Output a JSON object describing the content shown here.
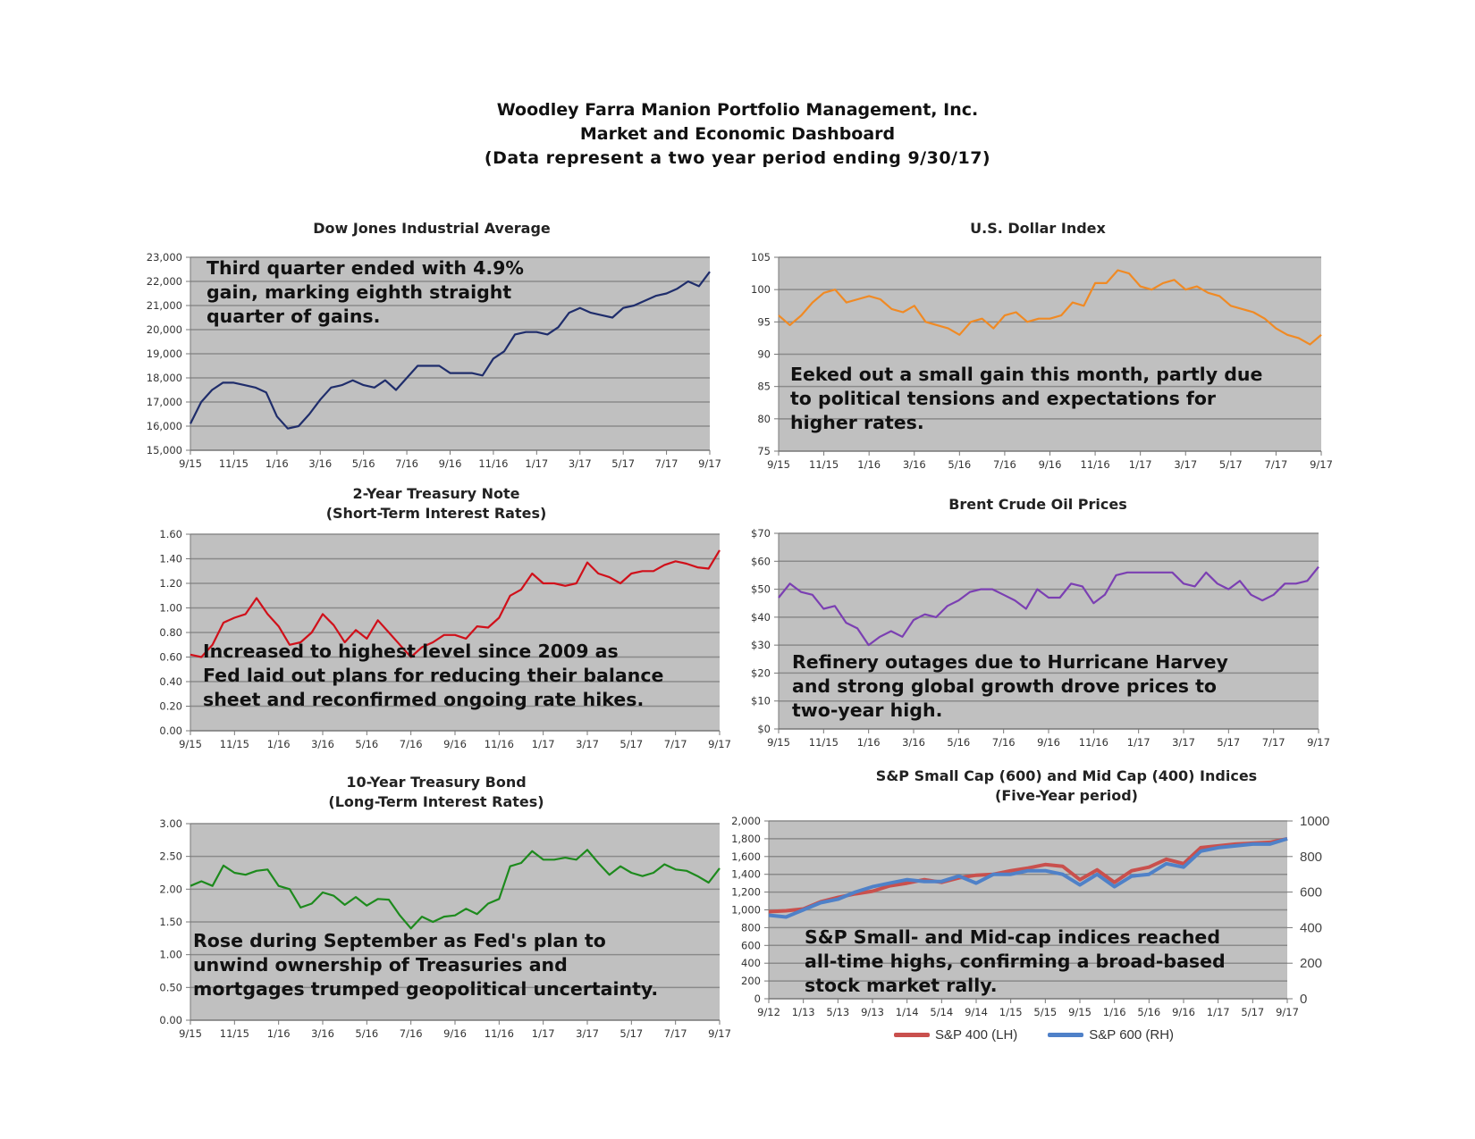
{
  "header": {
    "line1": "Woodley Farra Manion Portfolio Management, Inc.",
    "line2": "Market and Economic Dashboard",
    "line3": "(Data represent a two year period ending 9/30/17)"
  },
  "colors": {
    "plot_bg": "#c0c0c0",
    "grid": "#8a8a8a",
    "dow": "#1f2d6b",
    "dollar": "#f08a24",
    "t2": "#d0101a",
    "oil": "#7b3fb2",
    "t10": "#1d8a1d",
    "sp400": "#c9504d",
    "sp600": "#4f81c8"
  },
  "chart_data": [
    {
      "id": "dow",
      "type": "line",
      "title": "Dow Jones Industrial Average",
      "subtitle": "",
      "annotation": [
        "Third quarter ended with 4.9%",
        "gain, marking eighth straight",
        "quarter of gains."
      ],
      "xticks": [
        "9/15",
        "11/15",
        "1/16",
        "3/16",
        "5/16",
        "7/16",
        "9/16",
        "11/16",
        "1/17",
        "3/17",
        "5/17",
        "7/17",
        "9/17"
      ],
      "yticks": [
        "15,000",
        "16,000",
        "17,000",
        "18,000",
        "19,000",
        "20,000",
        "21,000",
        "22,000",
        "23,000"
      ],
      "ylim": [
        15000,
        23000
      ],
      "series": [
        {
          "name": "Dow Jones Industrial Average",
          "values": [
            16100,
            17000,
            17500,
            17800,
            17800,
            17700,
            17600,
            17400,
            16400,
            15900,
            16000,
            16500,
            17100,
            17600,
            17700,
            17900,
            17700,
            17600,
            17900,
            17500,
            18000,
            18500,
            18500,
            18500,
            18200,
            18200,
            18200,
            18100,
            18800,
            19100,
            19800,
            19900,
            19900,
            19800,
            20100,
            20700,
            20900,
            20700,
            20600,
            20500,
            20900,
            21000,
            21200,
            21400,
            21500,
            21700,
            22000,
            21800,
            22400
          ]
        }
      ]
    },
    {
      "id": "dollar",
      "type": "line",
      "title": "U.S. Dollar Index",
      "subtitle": "",
      "annotation": [
        "Eeked out a small gain this month, partly due",
        "to political tensions and expectations for",
        "higher rates."
      ],
      "xticks": [
        "9/15",
        "11/15",
        "1/16",
        "3/16",
        "5/16",
        "7/16",
        "9/16",
        "11/16",
        "1/17",
        "3/17",
        "5/17",
        "7/17",
        "9/17"
      ],
      "yticks": [
        "75",
        "80",
        "85",
        "90",
        "95",
        "100",
        "105"
      ],
      "ylim": [
        75,
        105
      ],
      "series": [
        {
          "name": "U.S. Dollar Index",
          "values": [
            96,
            94.5,
            96,
            98,
            99.5,
            100,
            98,
            98.5,
            99,
            98.5,
            97,
            96.5,
            97.5,
            95,
            94.5,
            94,
            93,
            95,
            95.5,
            94,
            96,
            96.5,
            95,
            95.5,
            95.5,
            96,
            98,
            97.5,
            101,
            101,
            103,
            102.5,
            100.5,
            100,
            101,
            101.5,
            100,
            100.5,
            99.5,
            99,
            97.5,
            97,
            96.5,
            95.5,
            94,
            93,
            92.5,
            91.5,
            93
          ]
        }
      ]
    },
    {
      "id": "t2",
      "type": "line",
      "title": "2-Year Treasury Note",
      "subtitle": "(Short-Term Interest Rates)",
      "annotation": [
        "Increased to highest level since 2009 as",
        "Fed laid out plans for reducing their balance",
        "sheet and reconfirmed ongoing rate hikes."
      ],
      "xticks": [
        "9/15",
        "11/15",
        "1/16",
        "3/16",
        "5/16",
        "7/16",
        "9/16",
        "11/16",
        "1/17",
        "3/17",
        "5/17",
        "7/17",
        "9/17"
      ],
      "yticks": [
        "0.00",
        "0.20",
        "0.40",
        "0.60",
        "0.80",
        "1.00",
        "1.20",
        "1.40",
        "1.60"
      ],
      "ylim": [
        0,
        1.6
      ],
      "series": [
        {
          "name": "2-Year Treasury Yield",
          "values": [
            0.62,
            0.6,
            0.7,
            0.88,
            0.92,
            0.95,
            1.08,
            0.95,
            0.85,
            0.7,
            0.72,
            0.8,
            0.95,
            0.86,
            0.72,
            0.82,
            0.75,
            0.9,
            0.8,
            0.7,
            0.6,
            0.68,
            0.72,
            0.78,
            0.78,
            0.75,
            0.85,
            0.84,
            0.92,
            1.1,
            1.15,
            1.28,
            1.2,
            1.2,
            1.18,
            1.2,
            1.37,
            1.28,
            1.25,
            1.2,
            1.28,
            1.3,
            1.3,
            1.35,
            1.38,
            1.36,
            1.33,
            1.32,
            1.47
          ]
        }
      ]
    },
    {
      "id": "oil",
      "type": "line",
      "title": "Brent Crude Oil Prices",
      "subtitle": "",
      "annotation": [
        "Refinery outages due to Hurricane Harvey",
        "and strong global growth drove prices to",
        "two-year high."
      ],
      "xticks": [
        "9/15",
        "11/15",
        "1/16",
        "3/16",
        "5/16",
        "7/16",
        "9/16",
        "11/16",
        "1/17",
        "3/17",
        "5/17",
        "7/17",
        "9/17"
      ],
      "yticks": [
        "$0",
        "$10",
        "$20",
        "$30",
        "$40",
        "$50",
        "$60",
        "$70"
      ],
      "ylim": [
        0,
        70
      ],
      "series": [
        {
          "name": "Brent Crude ($/bbl)",
          "values": [
            47,
            52,
            49,
            48,
            43,
            44,
            38,
            36,
            30,
            33,
            35,
            33,
            39,
            41,
            40,
            44,
            46,
            49,
            50,
            50,
            48,
            46,
            43,
            50,
            47,
            47,
            52,
            51,
            45,
            48,
            55,
            56,
            56,
            56,
            56,
            56,
            52,
            51,
            56,
            52,
            50,
            53,
            48,
            46,
            48,
            52,
            52,
            53,
            58
          ]
        }
      ]
    },
    {
      "id": "t10",
      "type": "line",
      "title": "10-Year Treasury Bond",
      "subtitle": "(Long-Term Interest Rates)",
      "annotation": [
        "Rose during September as Fed's plan to",
        "unwind ownership of Treasuries and",
        "mortgages trumped geopolitical uncertainty."
      ],
      "xticks": [
        "9/15",
        "11/15",
        "1/16",
        "3/16",
        "5/16",
        "7/16",
        "9/16",
        "11/16",
        "1/17",
        "3/17",
        "5/17",
        "7/17",
        "9/17"
      ],
      "yticks": [
        "0.00",
        "0.50",
        "1.00",
        "1.50",
        "2.00",
        "2.50",
        "3.00"
      ],
      "ylim": [
        0,
        3
      ],
      "series": [
        {
          "name": "10-Year Treasury Yield",
          "values": [
            2.05,
            2.12,
            2.05,
            2.36,
            2.25,
            2.22,
            2.28,
            2.3,
            2.05,
            2.0,
            1.72,
            1.78,
            1.95,
            1.9,
            1.76,
            1.88,
            1.75,
            1.85,
            1.84,
            1.6,
            1.4,
            1.58,
            1.5,
            1.58,
            1.6,
            1.7,
            1.62,
            1.78,
            1.85,
            2.35,
            2.4,
            2.58,
            2.45,
            2.45,
            2.48,
            2.45,
            2.6,
            2.4,
            2.22,
            2.35,
            2.25,
            2.2,
            2.25,
            2.38,
            2.3,
            2.28,
            2.2,
            2.1,
            2.32
          ]
        }
      ]
    },
    {
      "id": "sp",
      "type": "line",
      "title": "S&P Small Cap (600) and Mid Cap (400) Indices",
      "subtitle": "(Five-Year period)",
      "annotation": [
        "S&P Small- and Mid-cap indices reached",
        "all-time highs, confirming a broad-based",
        "stock market rally."
      ],
      "xticks": [
        "9/12",
        "1/13",
        "5/13",
        "9/13",
        "1/14",
        "5/14",
        "9/14",
        "1/15",
        "5/15",
        "9/15",
        "1/16",
        "5/16",
        "9/16",
        "1/17",
        "5/17",
        "9/17"
      ],
      "yticks": [
        "0",
        "200",
        "400",
        "600",
        "800",
        "1,000",
        "1,200",
        "1,400",
        "1,600",
        "1,800",
        "2,000"
      ],
      "ylim": [
        0,
        2000
      ],
      "yticks_right": [
        "0",
        "200",
        "400",
        "600",
        "800",
        "1000"
      ],
      "ylim_right": [
        0,
        1000
      ],
      "legend": [
        "S&P 400 (LH)",
        "S&P 600 (RH)"
      ],
      "legend_position": "bottom",
      "series": [
        {
          "name": "S&P 400 (LH)",
          "axis": "left",
          "values": [
            980,
            990,
            1010,
            1090,
            1140,
            1180,
            1210,
            1270,
            1300,
            1340,
            1310,
            1360,
            1390,
            1400,
            1440,
            1470,
            1510,
            1490,
            1340,
            1450,
            1310,
            1440,
            1480,
            1570,
            1520,
            1700,
            1720,
            1740,
            1750,
            1760,
            1800
          ]
        },
        {
          "name": "S&P 600 (RH)",
          "axis": "right",
          "values": [
            470,
            460,
            500,
            540,
            560,
            600,
            630,
            650,
            670,
            660,
            660,
            690,
            650,
            700,
            700,
            720,
            720,
            700,
            640,
            700,
            630,
            690,
            700,
            760,
            740,
            830,
            850,
            860,
            870,
            870,
            900
          ]
        }
      ]
    }
  ]
}
